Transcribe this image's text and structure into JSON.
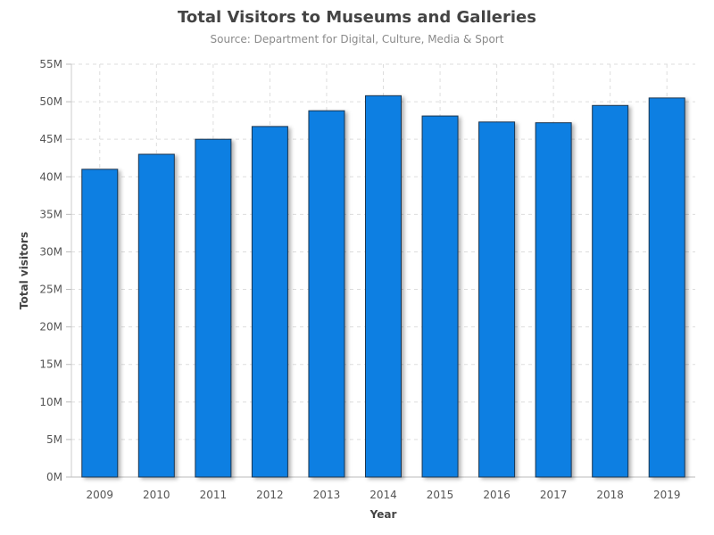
{
  "chart_data": {
    "type": "bar",
    "title": "Total Visitors to Museums and Galleries",
    "subtitle": "Source: Department for Digital, Culture, Media & Sport",
    "xlabel": "Year",
    "ylabel": "Total visitors",
    "categories": [
      "2009",
      "2010",
      "2011",
      "2012",
      "2013",
      "2014",
      "2015",
      "2016",
      "2017",
      "2018",
      "2019"
    ],
    "values": [
      41000000,
      43000000,
      45000000,
      46700000,
      48800000,
      50800000,
      48100000,
      47300000,
      47200000,
      49500000,
      50500000
    ],
    "ylim": [
      0,
      55000000
    ],
    "yticks": [
      0,
      5000000,
      10000000,
      15000000,
      20000000,
      25000000,
      30000000,
      35000000,
      40000000,
      45000000,
      50000000,
      55000000
    ],
    "ytick_labels": [
      "0M",
      "5M",
      "10M",
      "15M",
      "20M",
      "25M",
      "30M",
      "35M",
      "40M",
      "45M",
      "50M",
      "55M"
    ],
    "grid": true,
    "legend": "none",
    "bar_color": "#0a7fe2",
    "bar_edge_color": "#1a3550"
  }
}
